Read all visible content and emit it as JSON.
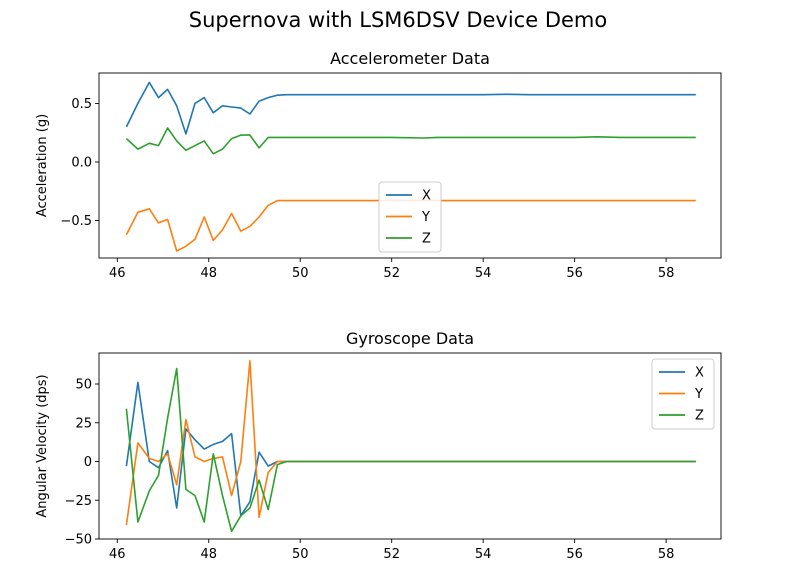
{
  "figure": {
    "title": "Supernova with LSM6DSV Device Demo"
  },
  "chart_data": [
    {
      "type": "line",
      "title": "Accelerometer Data",
      "xlabel": "",
      "ylabel": "Acceleration (g)",
      "xlim": [
        45.6,
        59.2
      ],
      "ylim": [
        -0.82,
        0.76
      ],
      "xticks": [
        46,
        48,
        50,
        52,
        54,
        56,
        58
      ],
      "yticks": [
        -0.5,
        0.0,
        0.5
      ],
      "xtick_labels": [
        "46",
        "48",
        "50",
        "52",
        "54",
        "56",
        "58"
      ],
      "ytick_labels": [
        "−0.5",
        "0.0",
        "0.5"
      ],
      "grid": false,
      "legend": {
        "placement": "lower-center"
      },
      "series": [
        {
          "name": "X",
          "color": "#1f77b4",
          "x": [
            46.2,
            46.45,
            46.7,
            46.9,
            47.1,
            47.3,
            47.5,
            47.7,
            47.9,
            48.1,
            48.3,
            48.5,
            48.7,
            48.9,
            49.1,
            49.3,
            49.5,
            49.7,
            50.0,
            51.0,
            52.0,
            53.0,
            54.0,
            54.5,
            55.0,
            56.0,
            57.0,
            58.0,
            58.65
          ],
          "y": [
            0.3,
            0.5,
            0.68,
            0.55,
            0.62,
            0.48,
            0.24,
            0.5,
            0.55,
            0.42,
            0.48,
            0.47,
            0.46,
            0.41,
            0.52,
            0.55,
            0.57,
            0.575,
            0.575,
            0.575,
            0.575,
            0.575,
            0.575,
            0.578,
            0.575,
            0.575,
            0.575,
            0.575,
            0.575
          ]
        },
        {
          "name": "Y",
          "color": "#ff7f0e",
          "x": [
            46.2,
            46.45,
            46.7,
            46.9,
            47.1,
            47.3,
            47.5,
            47.7,
            47.9,
            48.1,
            48.3,
            48.5,
            48.7,
            48.9,
            49.1,
            49.3,
            49.5,
            49.7,
            50.0,
            51.0,
            52.0,
            53.0,
            54.0,
            55.0,
            56.0,
            57.0,
            58.0,
            58.65
          ],
          "y": [
            -0.62,
            -0.43,
            -0.4,
            -0.52,
            -0.49,
            -0.76,
            -0.72,
            -0.66,
            -0.47,
            -0.67,
            -0.58,
            -0.44,
            -0.59,
            -0.55,
            -0.47,
            -0.37,
            -0.33,
            -0.33,
            -0.33,
            -0.33,
            -0.33,
            -0.33,
            -0.33,
            -0.33,
            -0.33,
            -0.33,
            -0.33,
            -0.33
          ]
        },
        {
          "name": "Z",
          "color": "#2ca02c",
          "x": [
            46.2,
            46.45,
            46.7,
            46.9,
            47.1,
            47.3,
            47.5,
            47.7,
            47.9,
            48.1,
            48.3,
            48.5,
            48.7,
            48.9,
            49.1,
            49.3,
            49.5,
            49.7,
            50.0,
            51.0,
            52.0,
            52.7,
            53.0,
            54.0,
            55.0,
            56.0,
            56.5,
            57.0,
            58.0,
            58.65
          ],
          "y": [
            0.2,
            0.11,
            0.16,
            0.14,
            0.29,
            0.18,
            0.1,
            0.14,
            0.18,
            0.07,
            0.11,
            0.2,
            0.23,
            0.23,
            0.12,
            0.21,
            0.21,
            0.21,
            0.21,
            0.21,
            0.21,
            0.205,
            0.21,
            0.21,
            0.21,
            0.21,
            0.215,
            0.21,
            0.21,
            0.21
          ]
        }
      ]
    },
    {
      "type": "line",
      "title": "Gyroscope Data",
      "xlabel": "",
      "ylabel": "Angular Velocity (dps)",
      "xlim": [
        45.6,
        59.2
      ],
      "ylim": [
        -50,
        70
      ],
      "xticks": [
        46,
        48,
        50,
        52,
        54,
        56,
        58
      ],
      "yticks": [
        -50,
        -25,
        0,
        25,
        50
      ],
      "xtick_labels": [
        "46",
        "48",
        "50",
        "52",
        "54",
        "56",
        "58"
      ],
      "ytick_labels": [
        "−50",
        "−25",
        "0",
        "25",
        "50"
      ],
      "grid": false,
      "legend": {
        "placement": "upper-right"
      },
      "series": [
        {
          "name": "X",
          "color": "#1f77b4",
          "x": [
            46.2,
            46.45,
            46.7,
            46.9,
            47.1,
            47.3,
            47.5,
            47.7,
            47.9,
            48.1,
            48.3,
            48.5,
            48.7,
            48.9,
            49.1,
            49.3,
            49.5,
            49.7,
            50.0,
            52.0,
            54.0,
            56.0,
            58.0,
            58.65
          ],
          "y": [
            -3,
            51,
            0,
            -4,
            7,
            -30,
            21,
            14,
            8,
            11,
            13,
            18,
            -35,
            -26,
            6,
            -3,
            0,
            0,
            0,
            0,
            0,
            0,
            0,
            0
          ]
        },
        {
          "name": "Y",
          "color": "#ff7f0e",
          "x": [
            46.2,
            46.45,
            46.7,
            46.9,
            47.1,
            47.3,
            47.5,
            47.7,
            47.9,
            48.1,
            48.3,
            48.5,
            48.7,
            48.9,
            49.1,
            49.3,
            49.5,
            49.7,
            50.0,
            52.0,
            54.0,
            56.0,
            58.0,
            58.65
          ],
          "y": [
            -41,
            12,
            2,
            0,
            5,
            -15,
            27,
            3,
            0,
            2,
            3,
            -22,
            0,
            65,
            -36,
            -7,
            0,
            0,
            0,
            0,
            0,
            0,
            0,
            0
          ]
        },
        {
          "name": "Z",
          "color": "#2ca02c",
          "x": [
            46.2,
            46.45,
            46.7,
            46.9,
            47.1,
            47.3,
            47.5,
            47.7,
            47.9,
            48.1,
            48.3,
            48.5,
            48.7,
            48.9,
            49.1,
            49.3,
            49.5,
            49.7,
            50.0,
            52.0,
            54.0,
            56.0,
            58.0,
            58.65
          ],
          "y": [
            34,
            -39,
            -19,
            -9,
            28,
            60,
            -18,
            -22,
            -39,
            5,
            -22,
            -45,
            -35,
            -30,
            -12,
            -31,
            -2,
            0,
            0,
            0,
            0,
            0,
            0,
            0
          ]
        }
      ]
    }
  ]
}
